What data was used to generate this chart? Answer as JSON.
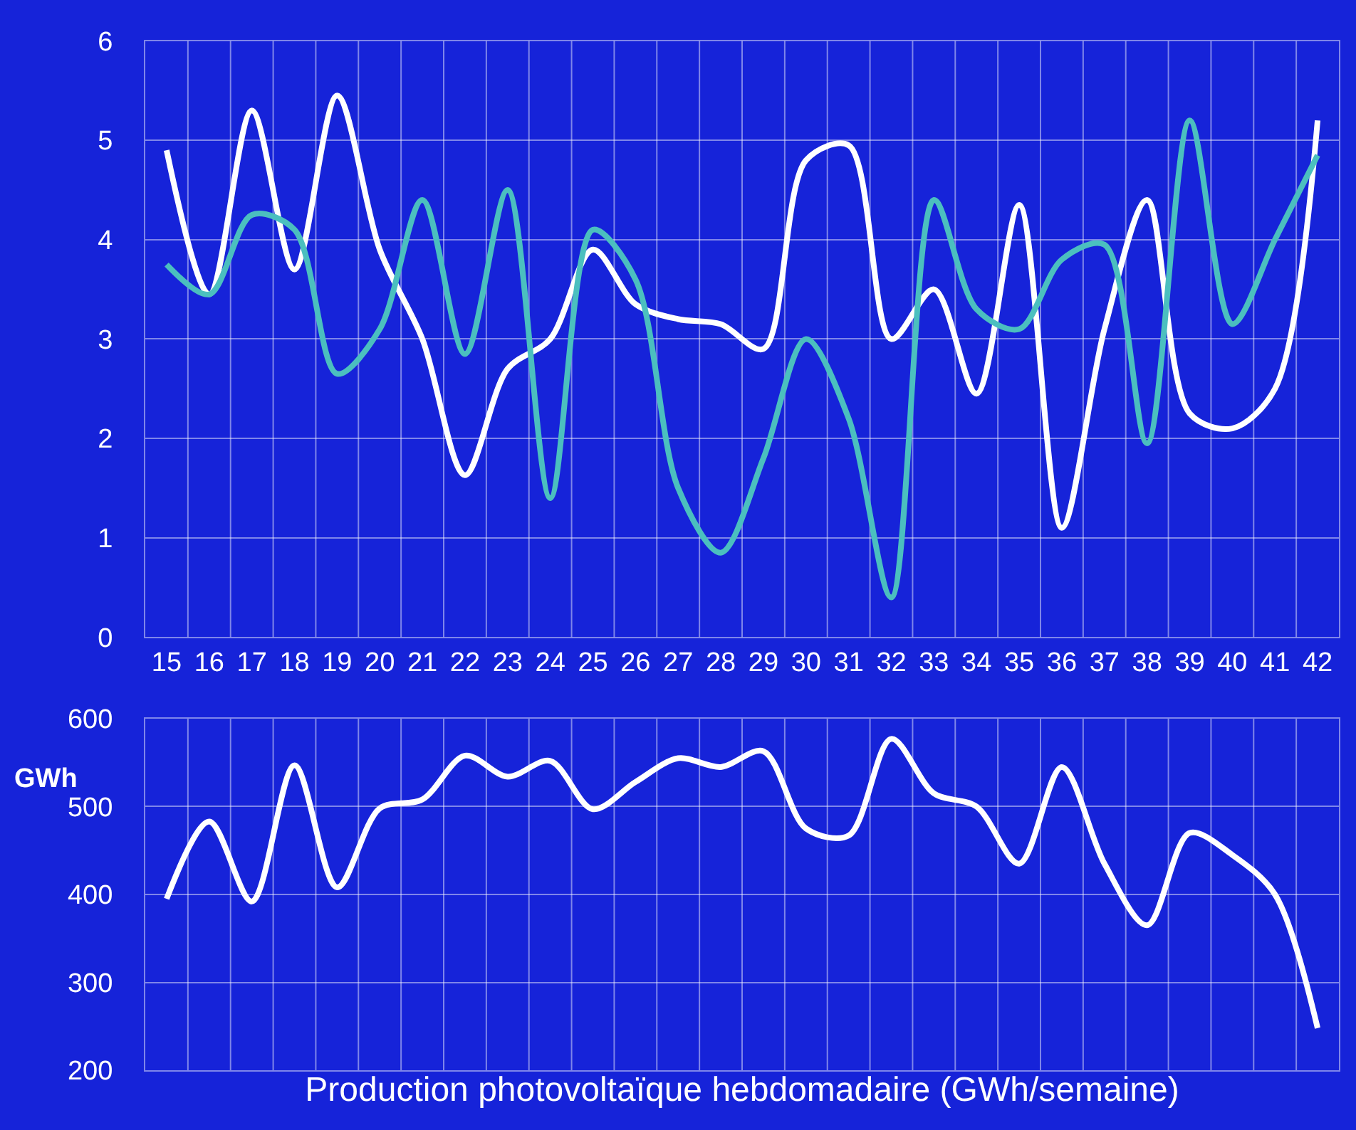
{
  "chart_data": [
    {
      "type": "line",
      "categories": [
        "15",
        "16",
        "17",
        "18",
        "19",
        "20",
        "21",
        "22",
        "23",
        "24",
        "25",
        "26",
        "27",
        "28",
        "29",
        "30",
        "31",
        "32",
        "33",
        "34",
        "35",
        "36",
        "37",
        "38",
        "39",
        "40",
        "41",
        "42"
      ],
      "ylim": [
        0,
        6
      ],
      "yticks": [
        0,
        1,
        2,
        3,
        4,
        5,
        6
      ],
      "grid": true,
      "marker": "none",
      "line_style": "solid",
      "series": [
        {
          "color": "#ffffff",
          "values": [
            4.9,
            3.45,
            5.3,
            3.7,
            5.45,
            3.9,
            3.0,
            1.63,
            2.7,
            3.0,
            3.9,
            3.35,
            3.2,
            3.15,
            2.9,
            4.8,
            4.95,
            3.0,
            3.5,
            2.45,
            4.35,
            1.1,
            3.1,
            4.4,
            2.25,
            2.1,
            2.5,
            5.2
          ]
        },
        {
          "color": "#4bbfbf",
          "values": [
            3.75,
            3.45,
            4.25,
            4.1,
            2.65,
            3.1,
            4.4,
            2.85,
            4.5,
            1.4,
            4.1,
            3.6,
            1.5,
            0.85,
            1.8,
            3.0,
            2.2,
            0.4,
            4.4,
            3.3,
            3.1,
            3.8,
            3.95,
            1.95,
            5.2,
            3.15,
            4.0,
            4.85
          ]
        }
      ]
    },
    {
      "type": "line",
      "ylabel": "GWh",
      "xlabel": "Production photovoltaïque hebdomadaire (GWh/semaine)",
      "categories": [
        "15",
        "16",
        "17",
        "18",
        "19",
        "20",
        "21",
        "22",
        "23",
        "24",
        "25",
        "26",
        "27",
        "28",
        "29",
        "30",
        "31",
        "32",
        "33",
        "34",
        "35",
        "36",
        "37",
        "38",
        "39",
        "40",
        "41",
        "42"
      ],
      "ylim": [
        200,
        600
      ],
      "yticks": [
        200,
        300,
        400,
        500,
        600
      ],
      "grid": true,
      "marker": "none",
      "line_style": "solid",
      "tick_labels": "y",
      "series": [
        {
          "color": "#ffffff",
          "values": [
            395,
            483,
            392,
            547,
            408,
            498,
            508,
            558,
            534,
            552,
            497,
            528,
            555,
            545,
            563,
            475,
            467,
            577,
            515,
            500,
            435,
            545,
            435,
            365,
            470,
            445,
            400,
            248
          ]
        }
      ]
    }
  ]
}
